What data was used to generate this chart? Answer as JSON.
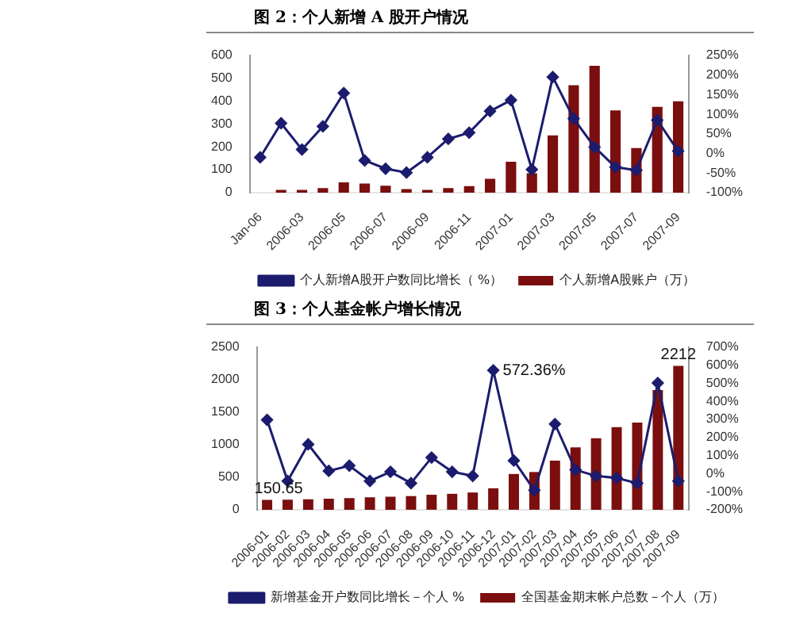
{
  "chart_data": [
    {
      "type": "bar",
      "title": "图 2：个人新增 A 股开户情况",
      "categories": [
        "Jan-06",
        null,
        "2006-03",
        null,
        "2006-05",
        null,
        "2006-07",
        null,
        "2006-09",
        null,
        "2006-11",
        null,
        "2007-01",
        null,
        "2007-03",
        null,
        "2007-05",
        null,
        "2007-07",
        null,
        "2007-09"
      ],
      "series": [
        {
          "name": "个人新增A股账户（万）",
          "color": "#7b0e0e",
          "values": [
            null,
            12,
            12,
            20,
            45,
            40,
            30,
            15,
            12,
            20,
            28,
            60,
            135,
            85,
            250,
            470,
            555,
            360,
            195,
            375,
            400
          ]
        },
        {
          "name": "个人新增A股开户数同比增长（ %）",
          "type": "line",
          "axis": "y2",
          "color": "#1c1c6e",
          "values": [
            -10,
            77,
            10,
            69,
            154,
            -18,
            -39,
            -49,
            -10,
            37,
            53,
            108,
            136,
            -41,
            195,
            89,
            16,
            -35,
            -43,
            85,
            6
          ]
        }
      ],
      "ylim": [
        0,
        600
      ],
      "yticks": [
        0,
        100,
        200,
        300,
        400,
        500,
        600
      ],
      "y2lim": [
        -100,
        250
      ],
      "y2ticks": [
        {
          "value": -100,
          "label": "-100%"
        },
        {
          "value": -50,
          "label": "-50%"
        },
        {
          "value": 0,
          "label": "0%"
        },
        {
          "value": 50,
          "label": "50%"
        },
        {
          "value": 100,
          "label": "100%"
        },
        {
          "value": 150,
          "label": "150%"
        },
        {
          "value": 200,
          "label": "200%"
        },
        {
          "value": 250,
          "label": "250%"
        }
      ],
      "legend": "bottom",
      "marker": "diamond"
    },
    {
      "type": "bar",
      "title": "图 3：个人基金帐户增长情况",
      "categories": [
        "2006-01",
        "2006-02",
        "2006-03",
        "2006-04",
        "2006-05",
        "2006-06",
        "2006-07",
        "2006-08",
        "2006-09",
        "2006-10",
        "2006-11",
        "2006-12",
        "2007-01",
        "2007-02",
        "2007-03",
        "2007-04",
        "2007-05",
        "2007-06",
        "2007-07",
        "2007-08",
        "2007-09"
      ],
      "series": [
        {
          "name": "全国基金期末帐户总数－个人（万）",
          "color": "#7b0e0e",
          "values": [
            150.65,
            155,
            160,
            170,
            180,
            190,
            200,
            210,
            230,
            245,
            265,
            330,
            550,
            580,
            755,
            960,
            1100,
            1270,
            1340,
            1840,
            2212
          ],
          "value_labels": [
            "150.65",
            null,
            null,
            null,
            null,
            null,
            null,
            null,
            null,
            null,
            null,
            null,
            null,
            null,
            null,
            null,
            null,
            null,
            null,
            null,
            "2212"
          ]
        },
        {
          "name": "新增基金开户数同比增长－个人 %",
          "type": "line",
          "axis": "y2",
          "color": "#1c1c6e",
          "values": [
            298,
            -41,
            162,
            15,
            44,
            -41,
            10,
            -53,
            89,
            10,
            -13,
            572.36,
            72,
            -92,
            275,
            21,
            -13,
            -24,
            -53,
            502,
            -41
          ],
          "value_labels": [
            null,
            null,
            null,
            null,
            null,
            null,
            null,
            null,
            null,
            null,
            null,
            "572.36%",
            null,
            null,
            null,
            null,
            null,
            null,
            null,
            null,
            null
          ]
        }
      ],
      "ylim": [
        0,
        2500
      ],
      "yticks": [
        0,
        500,
        1000,
        1500,
        2000,
        2500
      ],
      "y2lim": [
        -200,
        700
      ],
      "y2ticks": [
        {
          "value": -200,
          "label": "-200%"
        },
        {
          "value": -100,
          "label": "-100%"
        },
        {
          "value": 0,
          "label": "0%"
        },
        {
          "value": 100,
          "label": "100%"
        },
        {
          "value": 200,
          "label": "200%"
        },
        {
          "value": 300,
          "label": "300%"
        },
        {
          "value": 400,
          "label": "400%"
        },
        {
          "value": 500,
          "label": "500%"
        },
        {
          "value": 600,
          "label": "600%"
        },
        {
          "value": 700,
          "label": "700%"
        }
      ],
      "legend": "bottom",
      "marker": "diamond"
    }
  ]
}
